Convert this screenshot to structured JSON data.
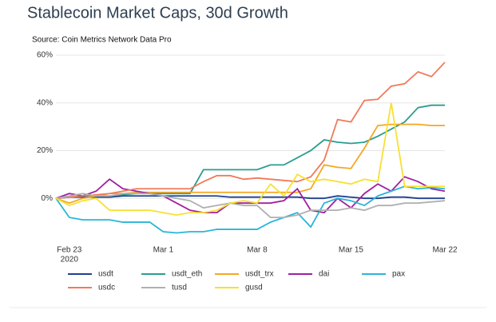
{
  "chart_data": {
    "type": "line",
    "title": "Stablecoin Market Caps, 30d Growth",
    "subtitle": "Source: Coin Metrics Network Data Pro",
    "x": [
      "2020-02-22",
      "2020-02-23",
      "2020-02-24",
      "2020-02-25",
      "2020-02-26",
      "2020-02-27",
      "2020-02-28",
      "2020-02-29",
      "2020-03-01",
      "2020-03-02",
      "2020-03-03",
      "2020-03-04",
      "2020-03-05",
      "2020-03-06",
      "2020-03-07",
      "2020-03-08",
      "2020-03-09",
      "2020-03-10",
      "2020-03-11",
      "2020-03-12",
      "2020-03-13",
      "2020-03-14",
      "2020-03-15",
      "2020-03-16",
      "2020-03-17",
      "2020-03-18",
      "2020-03-19",
      "2020-03-20",
      "2020-03-21",
      "2020-03-22"
    ],
    "xlim": [
      "2020-02-22",
      "2020-03-22"
    ],
    "xticks": [
      {
        "value": "2020-02-23",
        "label": "Feb 23",
        "sublabel": "2020"
      },
      {
        "value": "2020-03-01",
        "label": "Mar 1"
      },
      {
        "value": "2020-03-08",
        "label": "Mar 8"
      },
      {
        "value": "2020-03-15",
        "label": "Mar 15"
      },
      {
        "value": "2020-03-22",
        "label": "Mar 22"
      }
    ],
    "ylim": [
      -16,
      62
    ],
    "yticks": [
      {
        "value": 0,
        "label": "0%"
      },
      {
        "value": 20,
        "label": "20%"
      },
      {
        "value": 40,
        "label": "40%"
      },
      {
        "value": 60,
        "label": "60%"
      }
    ],
    "grid": true,
    "series": [
      {
        "name": "usdt",
        "color": "#1f3f8f",
        "values": [
          0,
          0.5,
          0.5,
          0.5,
          0.5,
          1,
          1,
          1,
          1,
          1,
          1,
          1,
          1,
          0.5,
          0.5,
          0.5,
          0.5,
          0.5,
          0.5,
          0,
          0,
          1,
          0.5,
          0,
          0,
          0.5,
          0.5,
          0,
          0,
          0
        ]
      },
      {
        "name": "usdt_eth",
        "color": "#2a9d8f",
        "values": [
          0,
          0.5,
          1,
          1,
          1,
          1.5,
          2,
          2,
          2,
          2,
          2,
          12,
          12,
          12,
          12,
          12,
          14,
          14,
          17,
          20,
          24.5,
          23.5,
          23,
          23.5,
          26,
          29,
          32,
          38,
          39,
          39
        ]
      },
      {
        "name": "usdt_trx",
        "color": "#f6a623",
        "values": [
          0,
          -2,
          0,
          1,
          2,
          2,
          2.5,
          2.5,
          2.5,
          2.5,
          2.5,
          2.5,
          2.5,
          2.5,
          2.5,
          2.5,
          2.5,
          2.5,
          2.5,
          4,
          14,
          13,
          12.5,
          21,
          30.5,
          31,
          31,
          31,
          30.5,
          30.5
        ]
      },
      {
        "name": "dai",
        "color": "#a020a0",
        "values": [
          0,
          2,
          1,
          3,
          8,
          4,
          3,
          2,
          1,
          -2,
          -5,
          -6,
          -6,
          -2,
          -2,
          -2,
          -2,
          -1,
          4,
          -5,
          -6,
          0,
          -4,
          2,
          6,
          3,
          9,
          7,
          4,
          3
        ]
      },
      {
        "name": "pax",
        "color": "#29b6d9",
        "values": [
          0,
          -8,
          -9,
          -9,
          -9,
          -10,
          -10,
          -10,
          -14,
          -14.5,
          -14,
          -14,
          -13,
          -13,
          -13,
          -13,
          -10,
          -8,
          -6,
          -12,
          -2,
          0,
          -1,
          -3,
          1,
          3,
          5,
          4,
          4.5,
          4
        ]
      },
      {
        "name": "usdc",
        "color": "#f07a5a",
        "values": [
          0,
          0.5,
          1,
          1.5,
          2,
          3,
          4,
          4,
          4,
          4,
          4,
          7,
          9.5,
          9.5,
          8,
          8.5,
          8,
          7.5,
          7,
          9,
          16,
          33,
          32,
          41,
          41.5,
          47,
          48,
          53,
          51,
          57
        ]
      },
      {
        "name": "tusd",
        "color": "#b0b0b0",
        "values": [
          0,
          1,
          2,
          1,
          1,
          2,
          2,
          2,
          1,
          0,
          -1,
          -4,
          -3,
          -2,
          -3,
          -3,
          -8,
          -8,
          -7,
          -5,
          -5,
          -5,
          -4,
          -5,
          -3,
          -3,
          -2,
          -2,
          -1.5,
          -1
        ]
      },
      {
        "name": "gusd",
        "color": "#f8e030",
        "values": [
          0,
          -3,
          -1,
          0,
          -5,
          -5,
          -5,
          -5,
          -6,
          -7,
          -6,
          -6,
          -5,
          -2,
          -1,
          -2,
          6,
          1,
          10,
          7,
          8,
          7,
          6,
          8,
          7,
          40,
          5,
          5,
          5,
          5
        ]
      }
    ]
  }
}
